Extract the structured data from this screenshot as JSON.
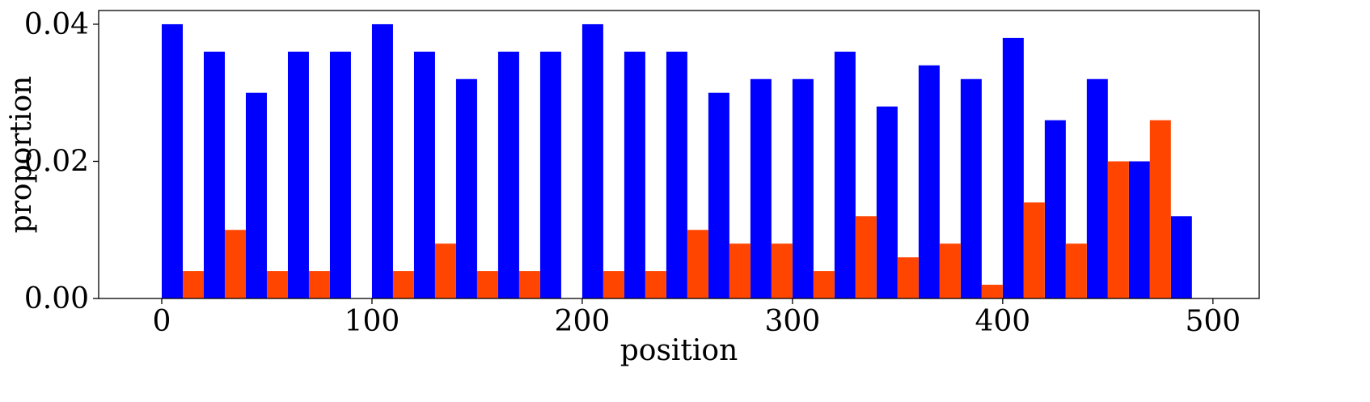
{
  "chart_data": {
    "type": "bar",
    "xlabel": "position",
    "ylabel": "proportion",
    "xlim": [
      -30,
      522
    ],
    "ylim": [
      0,
      0.042
    ],
    "xticks": [
      0,
      100,
      200,
      300,
      400,
      500
    ],
    "yticks": [
      0.0,
      0.02,
      0.04
    ],
    "xtick_labels": [
      "0",
      "100",
      "200",
      "300",
      "400",
      "500"
    ],
    "ytick_labels": [
      "0.00",
      "0.02",
      "0.04"
    ],
    "bin_width": 20,
    "bin_starts": [
      0,
      20,
      40,
      60,
      80,
      100,
      120,
      140,
      160,
      180,
      200,
      220,
      240,
      260,
      280,
      300,
      320,
      340,
      360,
      380,
      400,
      420,
      440,
      460,
      480
    ],
    "grid": false,
    "series": [
      {
        "color": "#0000ff",
        "offset": "left",
        "values": [
          0.04,
          0.036,
          0.03,
          0.036,
          0.036,
          0.04,
          0.036,
          0.032,
          0.036,
          0.036,
          0.04,
          0.036,
          0.036,
          0.03,
          0.032,
          0.032,
          0.036,
          0.028,
          0.034,
          0.032,
          0.038,
          0.026,
          0.032,
          0.02,
          0.012
        ]
      },
      {
        "color": "#ff4500",
        "offset": "right",
        "values": [
          0.004,
          0.01,
          0.004,
          0.004,
          0.0,
          0.004,
          0.008,
          0.004,
          0.004,
          0.0,
          0.004,
          0.004,
          0.01,
          0.008,
          0.008,
          0.004,
          0.012,
          0.006,
          0.008,
          0.002,
          0.014,
          0.008,
          0.02,
          0.026,
          0.0
        ]
      }
    ]
  }
}
